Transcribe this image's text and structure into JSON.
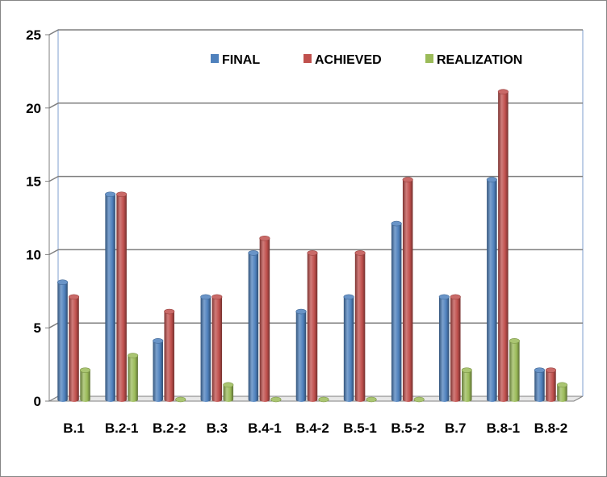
{
  "chart_data": {
    "type": "bar",
    "categories": [
      "B.1",
      "B.2-1",
      "B.2-2",
      "B.3",
      "B.4-1",
      "B.4-2",
      "B.5-1",
      "B.5-2",
      "B.7",
      "B.8-1",
      "B.8-2"
    ],
    "series": [
      {
        "name": "FINAL",
        "color": "#4f81bd",
        "values": [
          8,
          14,
          4,
          7,
          10,
          6,
          7,
          12,
          7,
          15,
          2
        ]
      },
      {
        "name": "ACHIEVED",
        "color": "#c0504d",
        "values": [
          7,
          14,
          6,
          7,
          11,
          10,
          10,
          15,
          7,
          21,
          2
        ]
      },
      {
        "name": "REALIZATION",
        "color": "#9bbb59",
        "values": [
          2,
          3,
          0,
          1,
          0,
          0,
          0,
          0,
          2,
          4,
          1
        ]
      }
    ],
    "ylim": [
      0,
      25
    ],
    "yticks": [
      "0",
      "5",
      "10",
      "15",
      "20",
      "25"
    ],
    "grid": true,
    "legend_position": "top",
    "title": "",
    "xlabel": "",
    "ylabel": ""
  }
}
